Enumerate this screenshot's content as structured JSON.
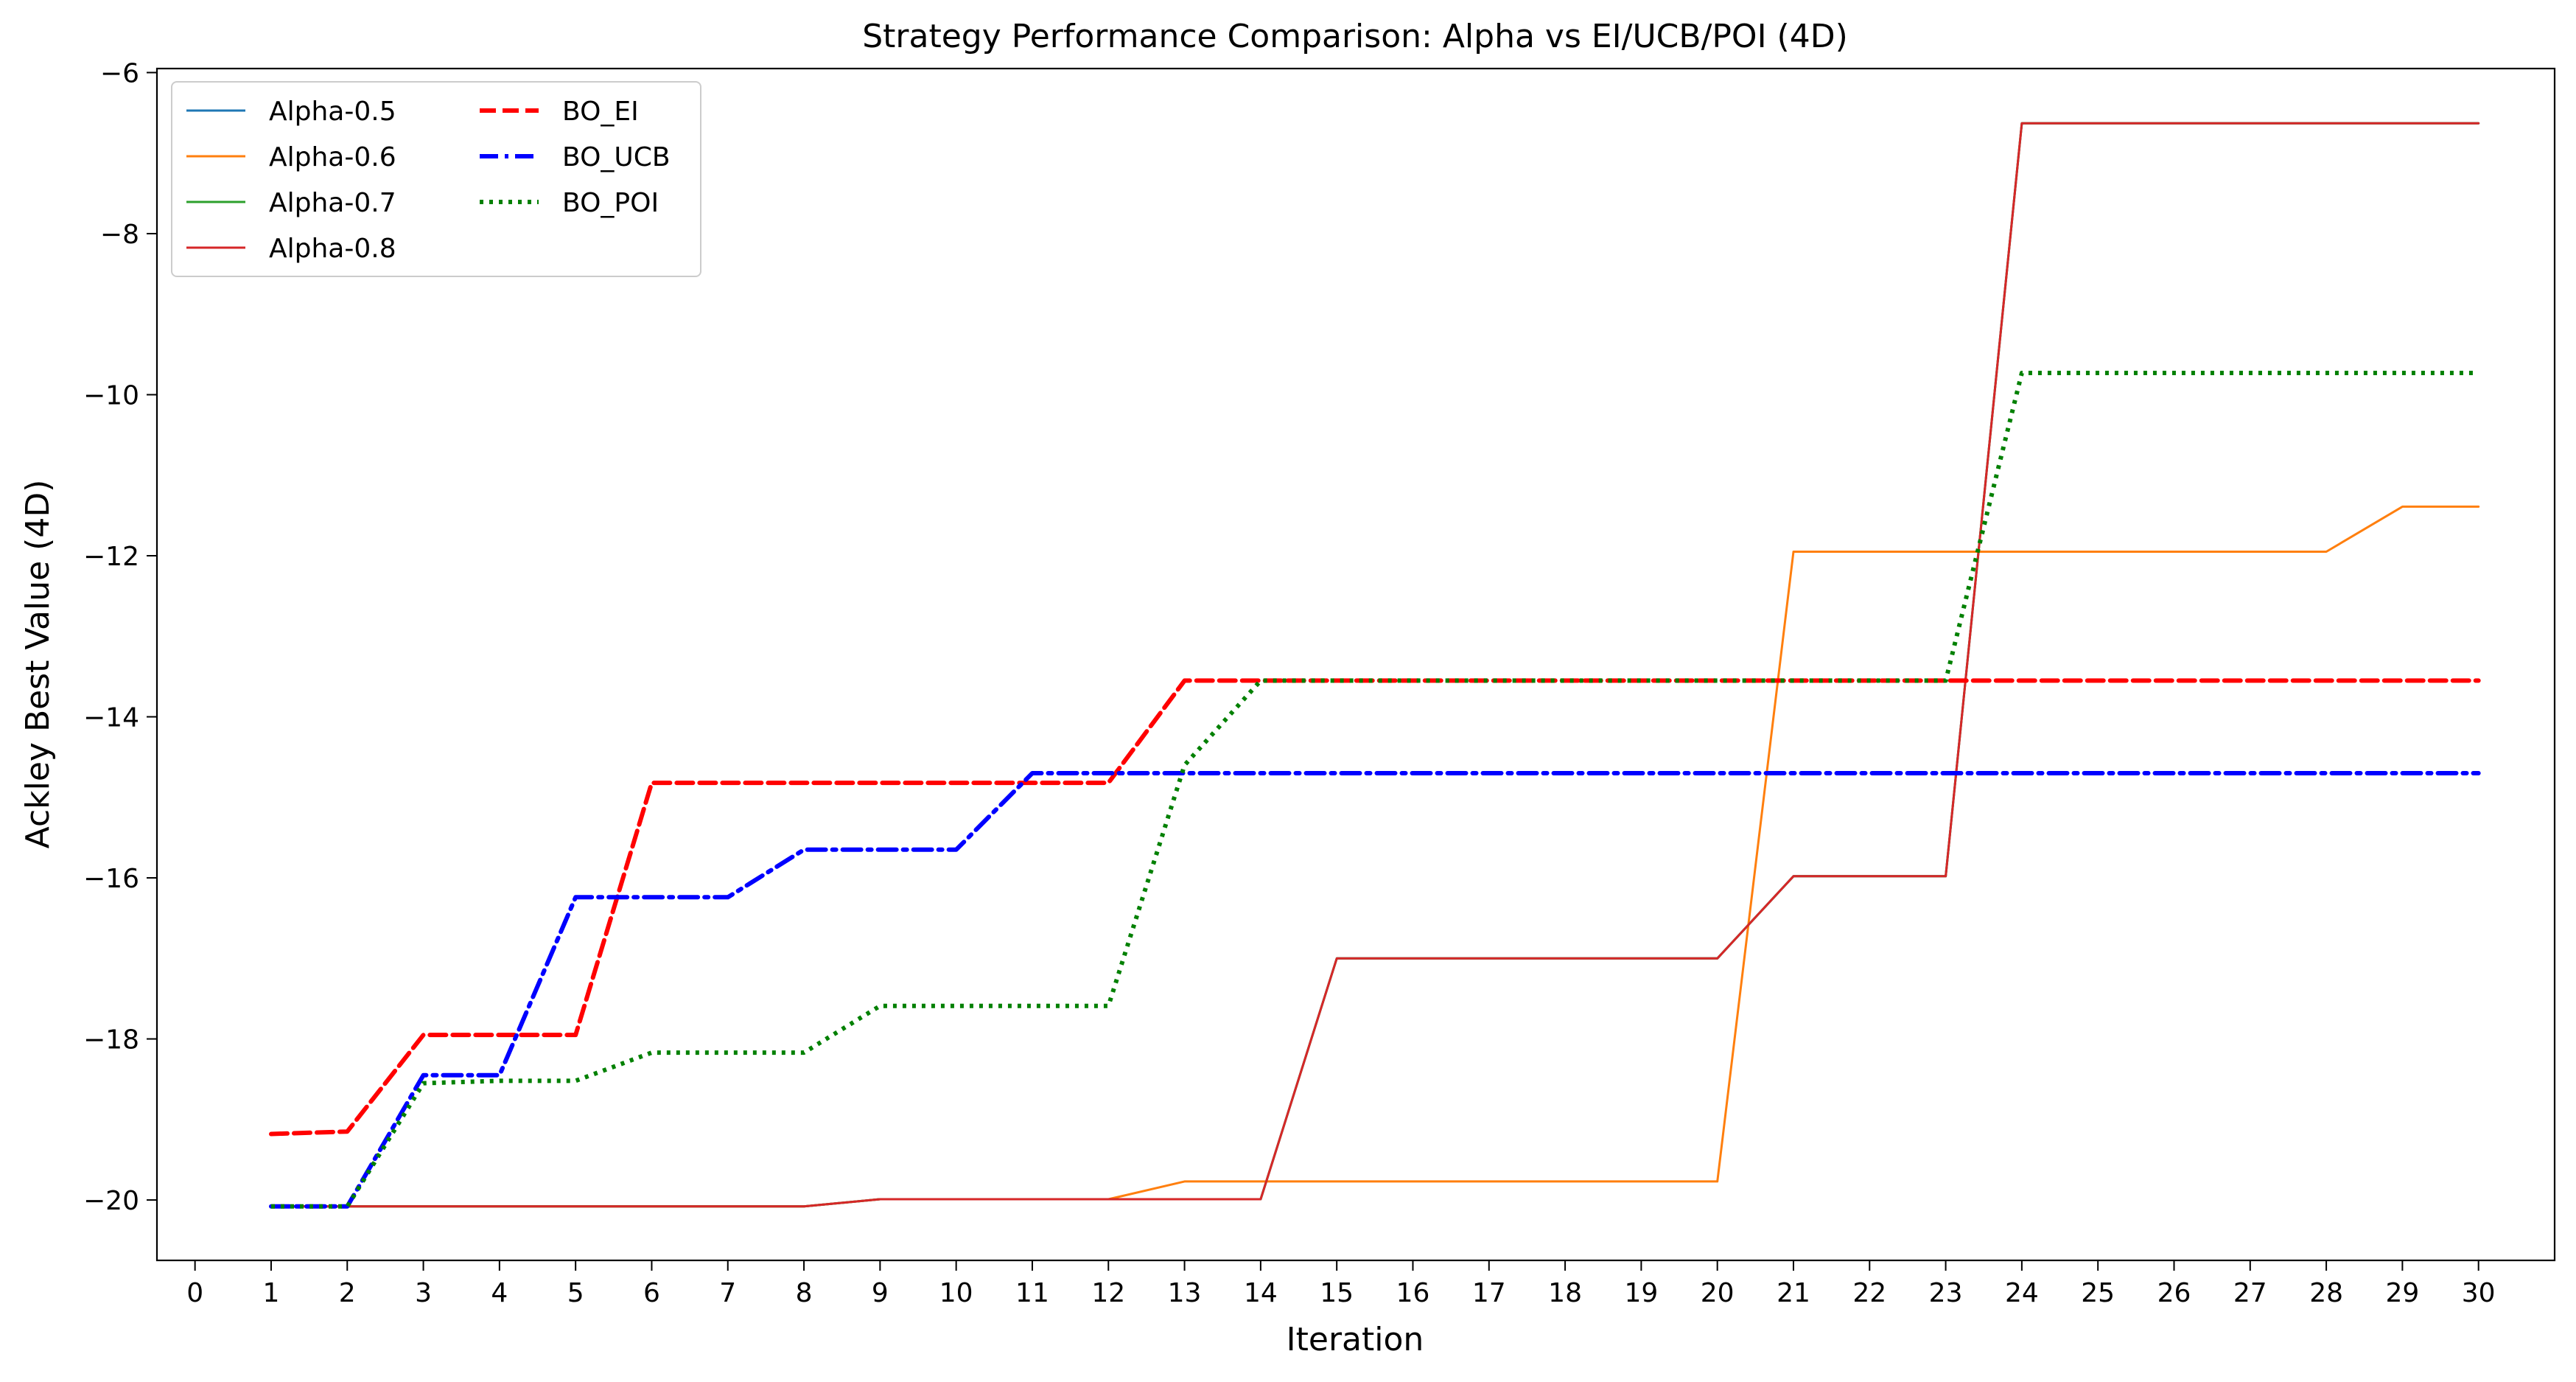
{
  "chart_data": {
    "type": "line",
    "title": "Strategy Performance Comparison: Alpha vs EI/UCB/POI (4D)",
    "xlabel": "Iteration",
    "ylabel": "Ackley Best Value (4D)",
    "xlim": [
      -0.5,
      31
    ],
    "ylim": [
      -20.75,
      -5.95
    ],
    "xticks": [
      0,
      1,
      2,
      3,
      4,
      5,
      6,
      7,
      8,
      9,
      10,
      11,
      12,
      13,
      14,
      15,
      16,
      17,
      18,
      19,
      20,
      21,
      22,
      23,
      24,
      25,
      26,
      27,
      28,
      29,
      30
    ],
    "yticks": [
      -20,
      -18,
      -16,
      -14,
      -12,
      -10,
      -8,
      -6
    ],
    "grid": false,
    "legend_position": "top-left",
    "x": [
      1,
      2,
      3,
      4,
      5,
      6,
      7,
      8,
      9,
      10,
      11,
      12,
      13,
      14,
      15,
      16,
      17,
      18,
      19,
      20,
      21,
      22,
      23,
      24,
      25,
      26,
      27,
      28,
      29,
      30
    ],
    "series": [
      {
        "name": "Alpha-0.5",
        "color": "#1f77b4",
        "style": "solid",
        "values": [
          -20.08,
          -20.08,
          -20.08,
          -20.08,
          -20.08,
          -20.08,
          -20.08,
          -20.08,
          -19.99,
          -19.99,
          -19.99,
          -19.99,
          -19.99,
          -19.99,
          -17.0,
          -17.0,
          -17.0,
          -17.0,
          -17.0,
          -17.0,
          -15.98,
          -15.98,
          -15.98,
          -6.63,
          -6.63,
          -6.63,
          -6.63,
          -6.63,
          -6.63,
          -6.63
        ]
      },
      {
        "name": "Alpha-0.6",
        "color": "#ff7f0e",
        "style": "solid",
        "values": [
          -20.08,
          -20.08,
          -20.08,
          -20.08,
          -20.08,
          -20.08,
          -20.08,
          -20.08,
          -19.99,
          -19.99,
          -19.99,
          -19.99,
          -19.77,
          -19.77,
          -19.77,
          -19.77,
          -19.77,
          -19.77,
          -19.77,
          -19.77,
          -11.95,
          -11.95,
          -11.95,
          -11.95,
          -11.95,
          -11.95,
          -11.95,
          -11.95,
          -11.39,
          -11.39
        ]
      },
      {
        "name": "Alpha-0.7",
        "color": "#2ca02c",
        "style": "solid",
        "values": [
          -20.08,
          -20.08,
          -20.08,
          -20.08,
          -20.08,
          -20.08,
          -20.08,
          -20.08,
          -19.99,
          -19.99,
          -19.99,
          -19.99,
          -19.99,
          -19.99,
          -17.0,
          -17.0,
          -17.0,
          -17.0,
          -17.0,
          -17.0,
          -15.98,
          -15.98,
          -15.98,
          -6.63,
          -6.63,
          -6.63,
          -6.63,
          -6.63,
          -6.63,
          -6.63
        ]
      },
      {
        "name": "Alpha-0.8",
        "color": "#d62728",
        "style": "solid",
        "values": [
          -20.08,
          -20.08,
          -20.08,
          -20.08,
          -20.08,
          -20.08,
          -20.08,
          -20.08,
          -19.99,
          -19.99,
          -19.99,
          -19.99,
          -19.99,
          -19.99,
          -17.0,
          -17.0,
          -17.0,
          -17.0,
          -17.0,
          -17.0,
          -15.98,
          -15.98,
          -15.98,
          -6.63,
          -6.63,
          -6.63,
          -6.63,
          -6.63,
          -6.63,
          -6.63
        ]
      },
      {
        "name": "BO_EI",
        "color": "#ff0000",
        "style": "dashed",
        "values": [
          -19.18,
          -19.15,
          -17.95,
          -17.95,
          -17.95,
          -14.82,
          -14.82,
          -14.82,
          -14.82,
          -14.82,
          -14.82,
          -14.82,
          -13.55,
          -13.55,
          -13.55,
          -13.55,
          -13.55,
          -13.55,
          -13.55,
          -13.55,
          -13.55,
          -13.55,
          -13.55,
          -13.55,
          -13.55,
          -13.55,
          -13.55,
          -13.55,
          -13.55,
          -13.55
        ]
      },
      {
        "name": "BO_UCB",
        "color": "#0000ff",
        "style": "dashdot",
        "values": [
          -20.08,
          -20.08,
          -18.45,
          -18.45,
          -16.24,
          -16.24,
          -16.24,
          -15.65,
          -15.65,
          -15.65,
          -14.7,
          -14.7,
          -14.7,
          -14.7,
          -14.7,
          -14.7,
          -14.7,
          -14.7,
          -14.7,
          -14.7,
          -14.7,
          -14.7,
          -14.7,
          -14.7,
          -14.7,
          -14.7,
          -14.7,
          -14.7,
          -14.7,
          -14.7
        ]
      },
      {
        "name": "BO_POI",
        "color": "#008000",
        "style": "dotted",
        "values": [
          -20.08,
          -20.08,
          -18.55,
          -18.52,
          -18.52,
          -18.17,
          -18.17,
          -18.17,
          -17.59,
          -17.59,
          -17.59,
          -17.59,
          -14.6,
          -13.55,
          -13.55,
          -13.55,
          -13.55,
          -13.55,
          -13.55,
          -13.55,
          -13.55,
          -13.55,
          -13.55,
          -9.73,
          -9.73,
          -9.73,
          -9.73,
          -9.73,
          -9.73,
          -9.73
        ]
      }
    ]
  }
}
